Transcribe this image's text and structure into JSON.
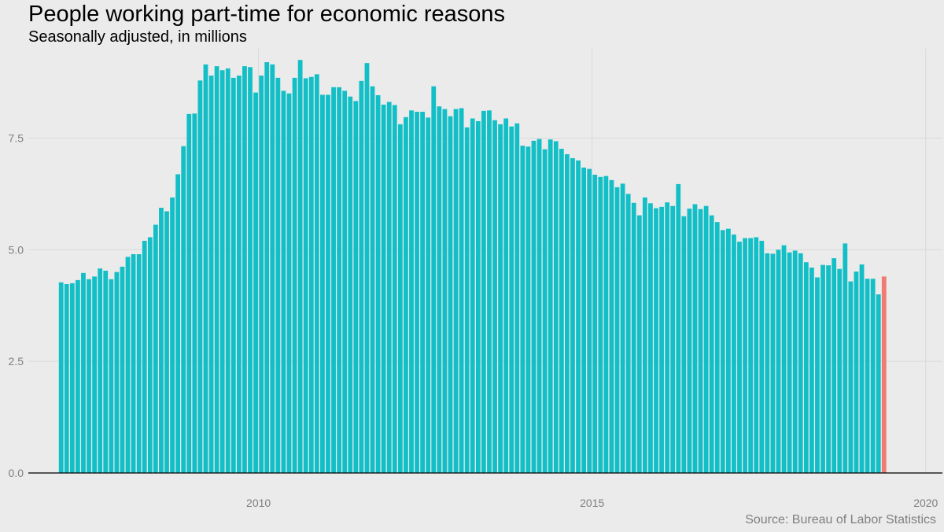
{
  "title": "People working part-time for economic reasons",
  "subtitle": "Seasonally adjusted, in millions",
  "source": "Source: Bureau of Labor Statistics",
  "colors": {
    "background": "#ebebeb",
    "grid": "#d9d9d9",
    "bar": "#13bfc6",
    "highlight": "#f07b72",
    "baseline": "#000000"
  },
  "chart_data": {
    "type": "bar",
    "title": "People working part-time for economic reasons",
    "subtitle": "Seasonally adjusted, in millions",
    "xlabel": "",
    "ylabel": "",
    "x_start": "2007-01",
    "frequency": "monthly",
    "xlim": [
      2006.55,
      2020.25
    ],
    "ylim": [
      0,
      9.5
    ],
    "x_ticks": [
      2010,
      2015,
      2020
    ],
    "x_tick_labels": [
      "2010",
      "2015",
      "2020"
    ],
    "y_ticks": [
      0,
      2.5,
      5.0,
      7.5
    ],
    "y_tick_labels": [
      "0.0",
      "2.5",
      "5.0",
      "7.5"
    ],
    "grid": true,
    "highlight": "last bar",
    "values": [
      4.27,
      4.23,
      4.25,
      4.32,
      4.48,
      4.34,
      4.4,
      4.58,
      4.53,
      4.34,
      4.5,
      4.62,
      4.84,
      4.9,
      4.9,
      5.2,
      5.28,
      5.56,
      5.94,
      5.86,
      6.17,
      6.69,
      7.32,
      8.04,
      8.05,
      8.79,
      9.15,
      8.9,
      9.11,
      9.02,
      9.06,
      8.85,
      8.9,
      9.11,
      9.09,
      8.52,
      8.9,
      9.2,
      9.15,
      8.85,
      8.56,
      8.5,
      8.85,
      9.25,
      8.84,
      8.87,
      8.93,
      8.47,
      8.47,
      8.64,
      8.64,
      8.56,
      8.43,
      8.33,
      8.78,
      9.18,
      8.66,
      8.46,
      8.25,
      8.31,
      8.24,
      7.81,
      7.97,
      8.12,
      8.09,
      8.09,
      7.96,
      8.66,
      8.21,
      8.15,
      7.99,
      8.15,
      8.17,
      7.74,
      7.94,
      7.88,
      8.11,
      8.12,
      7.9,
      7.81,
      7.94,
      7.76,
      7.83,
      7.33,
      7.31,
      7.44,
      7.48,
      7.25,
      7.47,
      7.43,
      7.26,
      7.14,
      7.05,
      7.0,
      6.84,
      6.81,
      6.68,
      6.63,
      6.65,
      6.56,
      6.4,
      6.48,
      6.25,
      6.05,
      5.77,
      6.17,
      6.04,
      5.93,
      5.96,
      6.06,
      5.98,
      6.47,
      5.75,
      5.92,
      6.02,
      5.91,
      5.98,
      5.77,
      5.62,
      5.44,
      5.47,
      5.34,
      5.18,
      5.26,
      5.26,
      5.28,
      5.2,
      4.92,
      4.91,
      5.0,
      5.1,
      4.94,
      4.98,
      4.92,
      4.72,
      4.6,
      4.38,
      4.66,
      4.65,
      4.81,
      4.57,
      5.14,
      4.29,
      4.51,
      4.67,
      4.35,
      4.35,
      4.0,
      4.4
    ]
  }
}
